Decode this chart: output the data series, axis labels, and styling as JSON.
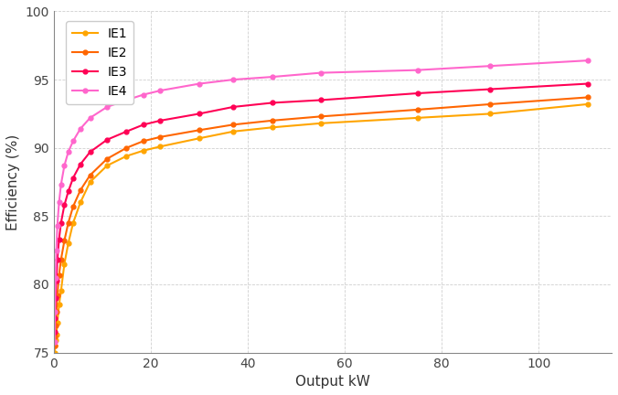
{
  "title": "",
  "xlabel": "Output kW",
  "ylabel": "Efficiency (%)",
  "xlim": [
    0,
    115
  ],
  "ylim": [
    75,
    100
  ],
  "xticks": [
    0,
    20,
    40,
    60,
    80,
    100
  ],
  "yticks": [
    75,
    80,
    85,
    90,
    95,
    100
  ],
  "background_color": "#ffffff",
  "grid_color": "#d0d0d0",
  "series": {
    "IE1": {
      "color": "#FFA500",
      "kw": [
        0.18,
        0.25,
        0.37,
        0.55,
        0.75,
        1.1,
        1.5,
        2.2,
        3.0,
        4.0,
        5.5,
        7.5,
        11,
        15,
        18.5,
        22,
        30,
        37,
        45,
        55,
        75,
        90,
        110
      ],
      "eff": [
        75.0,
        75.5,
        75.9,
        76.3,
        77.2,
        78.5,
        79.5,
        81.5,
        83.0,
        84.5,
        86.0,
        87.5,
        88.7,
        89.4,
        89.8,
        90.1,
        90.7,
        91.2,
        91.5,
        91.8,
        92.2,
        92.5,
        93.2
      ]
    },
    "IE2": {
      "color": "#FF6600",
      "kw": [
        0.18,
        0.25,
        0.37,
        0.55,
        0.75,
        1.1,
        1.5,
        2.2,
        3.0,
        4.0,
        5.5,
        7.5,
        11,
        15,
        18.5,
        22,
        30,
        37,
        45,
        55,
        75,
        90,
        110
      ],
      "eff": [
        75.5,
        76.2,
        77.0,
        78.0,
        79.2,
        80.7,
        81.8,
        83.2,
        84.5,
        85.7,
        86.9,
        88.0,
        89.2,
        90.0,
        90.5,
        90.8,
        91.3,
        91.7,
        92.0,
        92.3,
        92.8,
        93.2,
        93.7
      ]
    },
    "IE3": {
      "color": "#FF0055",
      "kw": [
        0.18,
        0.25,
        0.37,
        0.55,
        0.75,
        1.1,
        1.5,
        2.2,
        3.0,
        4.0,
        5.5,
        7.5,
        11,
        15,
        18.5,
        22,
        30,
        37,
        45,
        55,
        75,
        90,
        110
      ],
      "eff": [
        76.5,
        77.5,
        79.0,
        80.3,
        81.8,
        83.3,
        84.5,
        85.8,
        86.8,
        87.8,
        88.8,
        89.7,
        90.6,
        91.2,
        91.7,
        92.0,
        92.5,
        93.0,
        93.3,
        93.5,
        94.0,
        94.3,
        94.7
      ]
    },
    "IE4": {
      "color": "#FF66CC",
      "kw": [
        0.18,
        0.25,
        0.37,
        0.55,
        0.75,
        1.1,
        1.5,
        2.2,
        3.0,
        4.0,
        5.5,
        7.5,
        11,
        15,
        18.5,
        22,
        30,
        37,
        45,
        55,
        75,
        90,
        110
      ],
      "eff": [
        75.8,
        78.0,
        80.5,
        82.5,
        84.3,
        86.0,
        87.3,
        88.7,
        89.7,
        90.5,
        91.4,
        92.2,
        93.0,
        93.5,
        93.9,
        94.2,
        94.7,
        95.0,
        95.2,
        95.5,
        95.7,
        96.0,
        96.4
      ]
    }
  }
}
